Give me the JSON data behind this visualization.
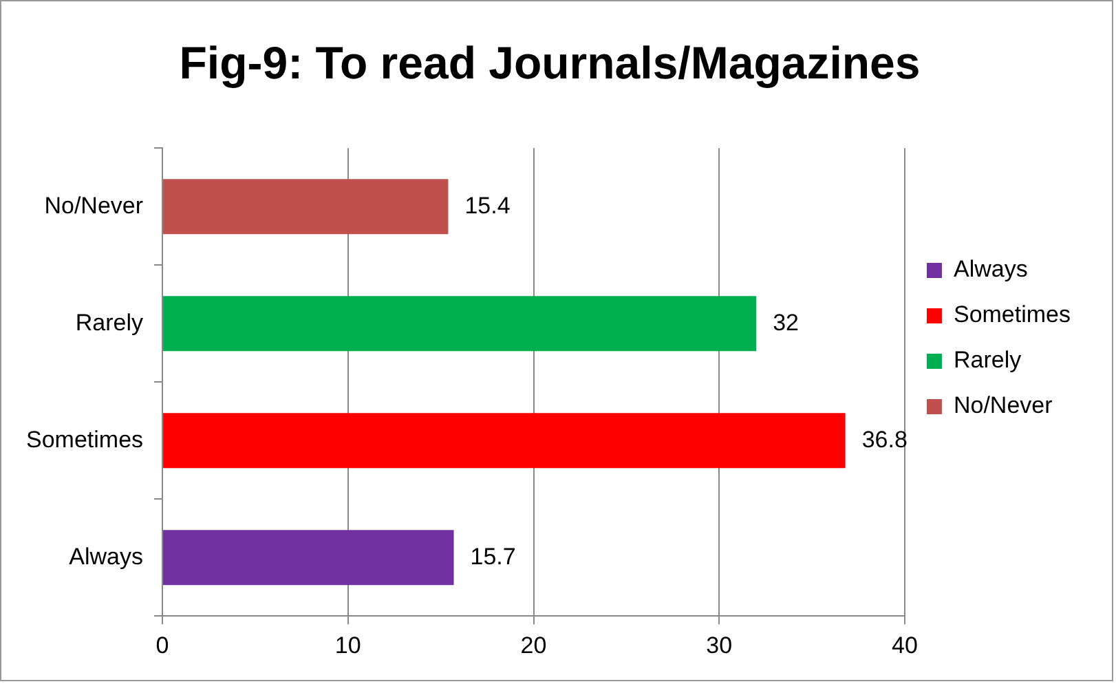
{
  "chart_data": {
    "type": "bar",
    "orientation": "horizontal",
    "stacked": true,
    "title": "Fig-9: To read Journals/Magazines",
    "categories": [
      "No/Never",
      "Rarely",
      "Sometimes",
      "Always"
    ],
    "series": [
      {
        "name": "Always",
        "color": "#7030a0",
        "values": [
          null,
          null,
          null,
          15.7
        ]
      },
      {
        "name": "Sometimes",
        "color": "#ff0000",
        "values": [
          null,
          null,
          36.8,
          null
        ]
      },
      {
        "name": "Rarely",
        "color": "#00b050",
        "values": [
          null,
          32,
          null,
          null
        ]
      },
      {
        "name": "No/Never",
        "color": "#c0504d",
        "values": [
          15.4,
          null,
          null,
          null
        ]
      }
    ],
    "xlim": [
      0,
      40
    ],
    "xticks": [
      0,
      10,
      20,
      30,
      40
    ],
    "grid": "x",
    "legend": "right",
    "data_labels": true
  }
}
